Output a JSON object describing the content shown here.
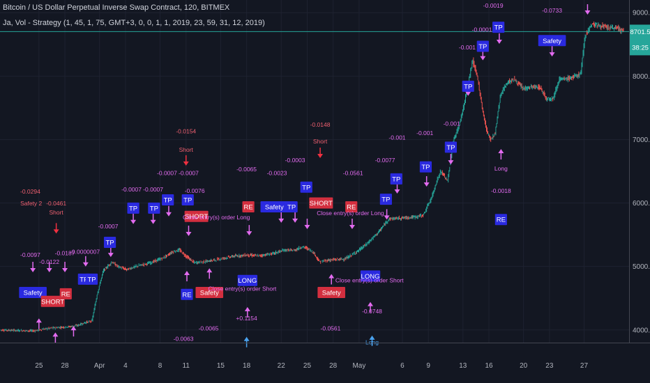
{
  "header": {
    "title": "Bitcoin / US Dollar Perpetual Inverse Swap Contract, 120, BITMEX",
    "indicator": "Ja, Vol - Strategy (1, 45, 1, 75, GMT+3, 0, 0, 1, 1, 2019, 23, 59, 31, 12, 2019)"
  },
  "colors": {
    "background": "#131722",
    "bull": "#26a69a",
    "bear": "#ef5350",
    "price_line": "#26a69a",
    "label_blue": "#2a2ae0",
    "label_red": "#d32f3f",
    "arrow_magenta": "#e36bf0",
    "arrow_red": "#ef3040",
    "arrow_blue": "#4aa3f0",
    "text_red": "#f06070"
  },
  "chart_data": {
    "type": "candlestick",
    "title": "Bitcoin / US Dollar Perpetual Inverse Swap Contract, 120, BITMEX",
    "xlabel": "",
    "ylabel": "",
    "x_tick_labels": [
      "25",
      "28",
      "Apr",
      "4",
      "8",
      "11",
      "15",
      "18",
      "22",
      "25",
      "28",
      "May",
      "6",
      "9",
      "13",
      "16",
      "20",
      "23",
      "27"
    ],
    "x_tick_days": [
      25,
      28,
      32,
      35,
      39,
      42,
      46,
      49,
      53,
      56,
      59,
      62,
      67,
      70,
      74,
      77,
      81,
      84,
      88
    ],
    "y_tick_labels": [
      "9000.0",
      "8000.0",
      "7000.0",
      "6000.0",
      "5000.0",
      "4000.0"
    ],
    "y_ticks": [
      9000,
      8000,
      7000,
      6000,
      5000,
      4000
    ],
    "ylim": [
      3800,
      9200
    ],
    "xlim_days": [
      20.5,
      93.2
    ],
    "last_price": "8701.5",
    "countdown": "38:25",
    "price_path": [
      [
        20.5,
        4000
      ],
      [
        23,
        3990
      ],
      [
        24.5,
        3985
      ],
      [
        25.5,
        4010
      ],
      [
        26.5,
        4030
      ],
      [
        27.5,
        4040
      ],
      [
        28.5,
        4050
      ],
      [
        29.5,
        4070
      ],
      [
        30.5,
        4120
      ],
      [
        31.2,
        4140
      ],
      [
        31.8,
        4560
      ],
      [
        32.5,
        4930
      ],
      [
        33.5,
        5070
      ],
      [
        34.2,
        5000
      ],
      [
        35.2,
        4950
      ],
      [
        36.5,
        5010
      ],
      [
        38,
        5060
      ],
      [
        39.5,
        5140
      ],
      [
        40.5,
        5230
      ],
      [
        41.3,
        5260
      ],
      [
        42,
        5170
      ],
      [
        43,
        5060
      ],
      [
        44.5,
        5080
      ],
      [
        46,
        5120
      ],
      [
        47.5,
        5160
      ],
      [
        49,
        5180
      ],
      [
        50.5,
        5170
      ],
      [
        52,
        5200
      ],
      [
        53.5,
        5260
      ],
      [
        54.5,
        5250
      ],
      [
        55.5,
        5310
      ],
      [
        56,
        5290
      ],
      [
        56.8,
        5220
      ],
      [
        57.5,
        5070
      ],
      [
        58.5,
        5100
      ],
      [
        59.5,
        5110
      ],
      [
        60.5,
        5120
      ],
      [
        61.3,
        5190
      ],
      [
        62,
        5250
      ],
      [
        63,
        5360
      ],
      [
        64.5,
        5570
      ],
      [
        65.5,
        5750
      ],
      [
        66.5,
        5760
      ],
      [
        67.5,
        5770
      ],
      [
        68.5,
        5780
      ],
      [
        69.5,
        5810
      ],
      [
        70.5,
        6100
      ],
      [
        71,
        6330
      ],
      [
        71.5,
        6500
      ],
      [
        72.3,
        6350
      ],
      [
        73,
        7000
      ],
      [
        73.6,
        7200
      ],
      [
        74.2,
        7550
      ],
      [
        74.7,
        7900
      ],
      [
        75.2,
        8250
      ],
      [
        75.8,
        7950
      ],
      [
        76.3,
        7500
      ],
      [
        76.8,
        7150
      ],
      [
        77.3,
        7000
      ],
      [
        77.8,
        7100
      ],
      [
        78.4,
        7700
      ],
      [
        79.2,
        7900
      ],
      [
        80,
        7950
      ],
      [
        81,
        7800
      ],
      [
        82,
        7830
      ],
      [
        83,
        7820
      ],
      [
        83.7,
        7650
      ],
      [
        84.5,
        7650
      ],
      [
        85.2,
        7950
      ],
      [
        85.8,
        7950
      ],
      [
        86.7,
        7980
      ],
      [
        87.3,
        8010
      ],
      [
        87.7,
        8050
      ],
      [
        88.2,
        8650
      ],
      [
        89,
        8820
      ],
      [
        90,
        8790
      ],
      [
        91,
        8760
      ],
      [
        92,
        8760
      ],
      [
        92.6,
        8700
      ]
    ],
    "annotations": [
      {
        "text": "-0.0294",
        "day": 24,
        "price": 6150,
        "color": "red"
      },
      {
        "text": "Safety 2",
        "day": 24.1,
        "price": 5960,
        "color": "red"
      },
      {
        "text": "-0.0461",
        "day": 27,
        "price": 5960,
        "color": "red"
      },
      {
        "text": "Short",
        "day": 27,
        "price": 5820,
        "color": "red"
      },
      {
        "text": "-0.0154",
        "day": 42,
        "price": 7100,
        "color": "red"
      },
      {
        "text": "Short",
        "day": 42,
        "price": 6810,
        "color": "red"
      },
      {
        "text": "-0.0148",
        "day": 57.5,
        "price": 7200,
        "color": "red"
      },
      {
        "text": "Short",
        "day": 57.5,
        "price": 6940,
        "color": "red"
      },
      {
        "text": "-0.0097",
        "day": 24,
        "price": 5150,
        "color": "magenta"
      },
      {
        "text": "-0.0122",
        "day": 26.2,
        "price": 5040,
        "color": "magenta"
      },
      {
        "text": "-0.0187",
        "day": 28,
        "price": 5180,
        "color": "magenta"
      },
      {
        "text": "-0.0000007",
        "day": 30.3,
        "price": 5200,
        "color": "magenta"
      },
      {
        "text": "-0.0007",
        "day": 33,
        "price": 5600,
        "color": "magenta"
      },
      {
        "text": "-0.0007",
        "day": 35.7,
        "price": 6180,
        "color": "magenta"
      },
      {
        "text": "-0.0007",
        "day": 38.2,
        "price": 6180,
        "color": "magenta"
      },
      {
        "text": "-0.0007",
        "day": 39.8,
        "price": 6440,
        "color": "magenta"
      },
      {
        "text": "-0.0007",
        "day": 42.3,
        "price": 6440,
        "color": "magenta"
      },
      {
        "text": "-0.0076",
        "day": 43,
        "price": 6160,
        "color": "magenta"
      },
      {
        "text": "-0.0065",
        "day": 49,
        "price": 6500,
        "color": "magenta"
      },
      {
        "text": "-0.0003",
        "day": 54.6,
        "price": 6640,
        "color": "magenta"
      },
      {
        "text": "-0.0023",
        "day": 52.5,
        "price": 6440,
        "color": "magenta"
      },
      {
        "text": "-0.0561",
        "day": 61.3,
        "price": 6440,
        "color": "magenta"
      },
      {
        "text": "-0.0077",
        "day": 65,
        "price": 6640,
        "color": "magenta"
      },
      {
        "text": "-0.001",
        "day": 66.4,
        "price": 7000,
        "color": "magenta"
      },
      {
        "text": "-0.001",
        "day": 69.6,
        "price": 7070,
        "color": "magenta"
      },
      {
        "text": "-0.001",
        "day": 72.7,
        "price": 7220,
        "color": "magenta"
      },
      {
        "text": "-0.001",
        "day": 74.5,
        "price": 8420,
        "color": "magenta"
      },
      {
        "text": "-0.0001",
        "day": 76.2,
        "price": 8700,
        "color": "magenta"
      },
      {
        "text": "-0.0019",
        "day": 77.5,
        "price": 9080,
        "color": "magenta"
      },
      {
        "text": "-0.0733",
        "day": 84.3,
        "price": 9000,
        "color": "magenta"
      },
      {
        "text": "-0.0018",
        "day": 78.4,
        "price": 6160,
        "color": "magenta"
      },
      {
        "text": "-0.0063",
        "day": 41.7,
        "price": 3830,
        "color": "magenta"
      },
      {
        "text": "-0.0065",
        "day": 44.6,
        "price": 3990,
        "color": "magenta"
      },
      {
        "text": "-0.0561",
        "day": 58.7,
        "price": 3990,
        "color": "magenta"
      },
      {
        "text": "+0.1154",
        "day": 49,
        "price": 4150,
        "color": "magenta"
      },
      {
        "text": "-0.0748",
        "day": 63.5,
        "price": 4260,
        "color": "magenta"
      },
      {
        "text": "Close entry(s) order Long",
        "day": 45.5,
        "price": 5740,
        "color": "magenta"
      },
      {
        "text": "Close entry(s) order Long",
        "day": 61,
        "price": 5810,
        "color": "magenta"
      },
      {
        "text": "Close entry(s) order Short",
        "day": 48.5,
        "price": 4620,
        "color": "magenta"
      },
      {
        "text": "Close entry(s) order Short",
        "day": 63.2,
        "price": 4750,
        "color": "magenta"
      },
      {
        "text": "Long",
        "day": 78.4,
        "price": 6510,
        "color": "magenta"
      },
      {
        "text": "Long",
        "day": 63.5,
        "price": 3770,
        "color": "blue"
      }
    ],
    "signal_boxes": [
      {
        "text": "Safety",
        "day": 24.3,
        "price": 4590,
        "color": "blue"
      },
      {
        "text": "SHORT",
        "day": 26.6,
        "price": 4450,
        "color": "red"
      },
      {
        "text": "RE",
        "day": 28.1,
        "price": 4570,
        "color": "red"
      },
      {
        "text": "TP",
        "day": 30.2,
        "price": 4800,
        "color": "blue"
      },
      {
        "text": "TP",
        "day": 31.1,
        "price": 4800,
        "color": "blue"
      },
      {
        "text": "TP",
        "day": 33.2,
        "price": 5380,
        "color": "blue"
      },
      {
        "text": "TP",
        "day": 35.9,
        "price": 5920,
        "color": "blue"
      },
      {
        "text": "TP",
        "day": 38.3,
        "price": 5920,
        "color": "blue"
      },
      {
        "text": "TP",
        "day": 39.9,
        "price": 6050,
        "color": "blue"
      },
      {
        "text": "TP",
        "day": 42.2,
        "price": 6050,
        "color": "blue"
      },
      {
        "text": "SHORT",
        "day": 43.2,
        "price": 5790,
        "color": "red"
      },
      {
        "text": "RE",
        "day": 49.2,
        "price": 5940,
        "color": "red"
      },
      {
        "text": "Safety",
        "day": 52.2,
        "price": 5940,
        "color": "blue"
      },
      {
        "text": "TP",
        "day": 54.2,
        "price": 5940,
        "color": "blue"
      },
      {
        "text": "TP",
        "day": 55.9,
        "price": 6250,
        "color": "blue"
      },
      {
        "text": "SHORT",
        "day": 57.6,
        "price": 6000,
        "color": "red"
      },
      {
        "text": "RE",
        "day": 61.1,
        "price": 5940,
        "color": "red"
      },
      {
        "text": "TP",
        "day": 65.1,
        "price": 6060,
        "color": "blue"
      },
      {
        "text": "TP",
        "day": 66.3,
        "price": 6380,
        "color": "blue"
      },
      {
        "text": "TP",
        "day": 69.7,
        "price": 6570,
        "color": "blue"
      },
      {
        "text": "TP",
        "day": 72.6,
        "price": 6880,
        "color": "blue"
      },
      {
        "text": "TP",
        "day": 74.6,
        "price": 7840,
        "color": "blue"
      },
      {
        "text": "TP",
        "day": 76.3,
        "price": 8470,
        "color": "blue"
      },
      {
        "text": "TP",
        "day": 78.1,
        "price": 8770,
        "color": "blue"
      },
      {
        "text": "Safety",
        "day": 84.3,
        "price": 8560,
        "color": "blue"
      },
      {
        "text": "RE",
        "day": 78.4,
        "price": 5740,
        "color": "blue"
      },
      {
        "text": "RE",
        "day": 42.1,
        "price": 4560,
        "color": "blue"
      },
      {
        "text": "Safety",
        "day": 44.7,
        "price": 4590,
        "color": "red"
      },
      {
        "text": "LONG",
        "day": 49.1,
        "price": 4780,
        "color": "blue"
      },
      {
        "text": "Safety",
        "day": 58.8,
        "price": 4590,
        "color": "red"
      },
      {
        "text": "LONG",
        "day": 63.3,
        "price": 4850,
        "color": "blue"
      }
    ],
    "arrows": [
      {
        "day": 27,
        "price": 5530,
        "dir": "down",
        "color": "red"
      },
      {
        "day": 42,
        "price": 6600,
        "dir": "down",
        "color": "red"
      },
      {
        "day": 57.5,
        "price": 6720,
        "dir": "down",
        "color": "red"
      },
      {
        "day": 49,
        "price": 3880,
        "dir": "up",
        "color": "blue"
      },
      {
        "day": 63.5,
        "price": 3900,
        "dir": "up",
        "color": "blue"
      },
      {
        "day": 24.3,
        "price": 4920,
        "dir": "down",
        "color": "magenta"
      },
      {
        "day": 26.2,
        "price": 4920,
        "dir": "down",
        "color": "magenta"
      },
      {
        "day": 28,
        "price": 4920,
        "dir": "down",
        "color": "magenta"
      },
      {
        "day": 30.4,
        "price": 5010,
        "dir": "down",
        "color": "magenta"
      },
      {
        "day": 33.3,
        "price": 5160,
        "dir": "down",
        "color": "magenta"
      },
      {
        "day": 35.9,
        "price": 5680,
        "dir": "down",
        "color": "magenta"
      },
      {
        "day": 38.2,
        "price": 5680,
        "dir": "down",
        "color": "magenta"
      },
      {
        "day": 40,
        "price": 5800,
        "dir": "down",
        "color": "magenta"
      },
      {
        "day": 42.3,
        "price": 5490,
        "dir": "down",
        "color": "magenta"
      },
      {
        "day": 49.3,
        "price": 5500,
        "dir": "down",
        "color": "magenta"
      },
      {
        "day": 53,
        "price": 5700,
        "dir": "down",
        "color": "magenta"
      },
      {
        "day": 54.6,
        "price": 5700,
        "dir": "down",
        "color": "magenta"
      },
      {
        "day": 56,
        "price": 5600,
        "dir": "down",
        "color": "magenta"
      },
      {
        "day": 61.2,
        "price": 5600,
        "dir": "down",
        "color": "magenta"
      },
      {
        "day": 65.2,
        "price": 5750,
        "dir": "down",
        "color": "magenta"
      },
      {
        "day": 66.4,
        "price": 6160,
        "dir": "down",
        "color": "magenta"
      },
      {
        "day": 69.8,
        "price": 6270,
        "dir": "down",
        "color": "magenta"
      },
      {
        "day": 72.6,
        "price": 6620,
        "dir": "down",
        "color": "magenta"
      },
      {
        "day": 74.6,
        "price": 7700,
        "dir": "down",
        "color": "magenta"
      },
      {
        "day": 76.3,
        "price": 8260,
        "dir": "down",
        "color": "magenta"
      },
      {
        "day": 78.2,
        "price": 8520,
        "dir": "down",
        "color": "magenta"
      },
      {
        "day": 84.3,
        "price": 8320,
        "dir": "down",
        "color": "magenta"
      },
      {
        "day": 88.4,
        "price": 8980,
        "dir": "down",
        "color": "magenta"
      },
      {
        "day": 78.4,
        "price": 6840,
        "dir": "up",
        "color": "magenta"
      },
      {
        "day": 25,
        "price": 4170,
        "dir": "up",
        "color": "magenta"
      },
      {
        "day": 26.9,
        "price": 3950,
        "dir": "up",
        "color": "magenta"
      },
      {
        "day": 29,
        "price": 4050,
        "dir": "up",
        "color": "magenta"
      },
      {
        "day": 42.1,
        "price": 4920,
        "dir": "up",
        "color": "magenta"
      },
      {
        "day": 44.7,
        "price": 4960,
        "dir": "up",
        "color": "magenta"
      },
      {
        "day": 49.1,
        "price": 4350,
        "dir": "up",
        "color": "magenta"
      },
      {
        "day": 58.8,
        "price": 4870,
        "dir": "up",
        "color": "magenta"
      },
      {
        "day": 63.3,
        "price": 4430,
        "dir": "up",
        "color": "magenta"
      }
    ]
  }
}
